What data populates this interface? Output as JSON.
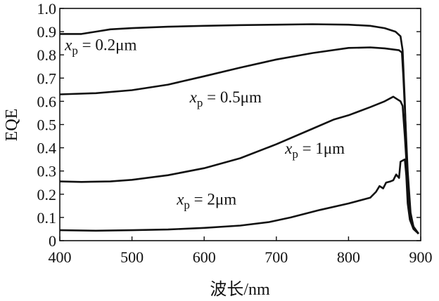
{
  "chart_data": {
    "type": "line",
    "title": "",
    "xlabel": "波长/nm",
    "ylabel": "EQE",
    "xlim": [
      400,
      900
    ],
    "ylim": [
      0,
      1.0
    ],
    "grid": false,
    "xticks": [
      "400",
      "500",
      "600",
      "700",
      "800",
      "900"
    ],
    "yticks": [
      "0",
      "0.1",
      "0.2",
      "0.3",
      "0.4",
      "0.5",
      "0.6",
      "0.7",
      "0.8",
      "0.9",
      "1.0"
    ],
    "series": [
      {
        "label_var": "x",
        "label_sub": "p",
        "label_value": " = 0.2μm",
        "label_at": [
          407,
          0.82
        ],
        "points": [
          [
            400,
            0.89
          ],
          [
            430,
            0.89
          ],
          [
            450,
            0.9
          ],
          [
            470,
            0.91
          ],
          [
            500,
            0.915
          ],
          [
            550,
            0.921
          ],
          [
            600,
            0.925
          ],
          [
            650,
            0.928
          ],
          [
            700,
            0.93
          ],
          [
            750,
            0.932
          ],
          [
            800,
            0.93
          ],
          [
            830,
            0.925
          ],
          [
            850,
            0.915
          ],
          [
            865,
            0.9
          ],
          [
            872,
            0.88
          ],
          [
            875,
            0.82
          ],
          [
            878,
            0.6
          ],
          [
            880,
            0.4
          ],
          [
            883,
            0.2
          ],
          [
            886,
            0.1
          ],
          [
            890,
            0.06
          ],
          [
            897,
            0.03
          ]
        ]
      },
      {
        "label_var": "x",
        "label_sub": "p",
        "label_value": " = 0.5μm",
        "label_at": [
          580,
          0.595
        ],
        "points": [
          [
            400,
            0.63
          ],
          [
            450,
            0.635
          ],
          [
            500,
            0.648
          ],
          [
            550,
            0.672
          ],
          [
            600,
            0.708
          ],
          [
            650,
            0.745
          ],
          [
            700,
            0.78
          ],
          [
            750,
            0.808
          ],
          [
            800,
            0.83
          ],
          [
            830,
            0.832
          ],
          [
            850,
            0.828
          ],
          [
            870,
            0.82
          ],
          [
            874,
            0.81
          ],
          [
            876,
            0.7
          ],
          [
            879,
            0.5
          ],
          [
            882,
            0.3
          ],
          [
            886,
            0.12
          ],
          [
            890,
            0.06
          ],
          [
            897,
            0.03
          ]
        ]
      },
      {
        "label_var": "x",
        "label_sub": "p",
        "label_value": " = 1μm",
        "label_at": [
          712,
          0.375
        ],
        "points": [
          [
            400,
            0.255
          ],
          [
            430,
            0.253
          ],
          [
            470,
            0.255
          ],
          [
            500,
            0.262
          ],
          [
            550,
            0.282
          ],
          [
            600,
            0.312
          ],
          [
            650,
            0.355
          ],
          [
            700,
            0.415
          ],
          [
            750,
            0.482
          ],
          [
            780,
            0.522
          ],
          [
            800,
            0.54
          ],
          [
            830,
            0.575
          ],
          [
            850,
            0.6
          ],
          [
            862,
            0.62
          ],
          [
            868,
            0.608
          ],
          [
            872,
            0.6
          ],
          [
            875,
            0.58
          ],
          [
            878,
            0.45
          ],
          [
            881,
            0.3
          ],
          [
            885,
            0.12
          ],
          [
            890,
            0.06
          ],
          [
            897,
            0.03
          ]
        ]
      },
      {
        "label_var": "x",
        "label_sub": "p",
        "label_value": " = 2μm",
        "label_at": [
          562,
          0.155
        ],
        "points": [
          [
            400,
            0.045
          ],
          [
            450,
            0.043
          ],
          [
            500,
            0.045
          ],
          [
            550,
            0.048
          ],
          [
            600,
            0.055
          ],
          [
            650,
            0.065
          ],
          [
            690,
            0.08
          ],
          [
            720,
            0.1
          ],
          [
            760,
            0.132
          ],
          [
            800,
            0.16
          ],
          [
            830,
            0.185
          ],
          [
            838,
            0.21
          ],
          [
            843,
            0.235
          ],
          [
            848,
            0.225
          ],
          [
            852,
            0.25
          ],
          [
            858,
            0.255
          ],
          [
            862,
            0.26
          ],
          [
            866,
            0.285
          ],
          [
            870,
            0.27
          ],
          [
            872,
            0.34
          ],
          [
            875,
            0.345
          ],
          [
            878,
            0.35
          ],
          [
            880,
            0.28
          ],
          [
            882,
            0.16
          ],
          [
            885,
            0.09
          ],
          [
            890,
            0.05
          ],
          [
            897,
            0.03
          ]
        ]
      }
    ]
  }
}
